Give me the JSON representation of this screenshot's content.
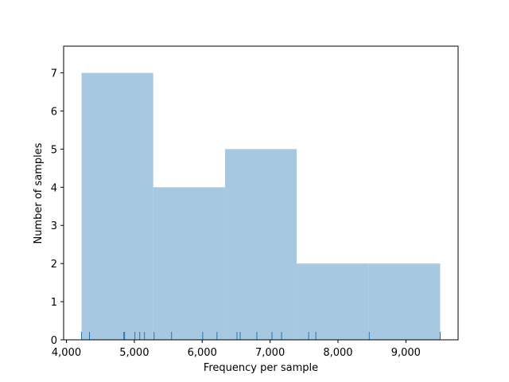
{
  "chart_data": {
    "type": "histogram",
    "xlabel": "Frequency per sample",
    "ylabel": "Number of samples",
    "bins": [
      4223,
      5279,
      6336,
      7392,
      8449,
      9505
    ],
    "counts": [
      7,
      4,
      5,
      2,
      2
    ],
    "color": "#a6c8e0",
    "rug": [
      4223,
      4340,
      4845,
      4857,
      5009,
      5080,
      5150,
      5291,
      5549,
      6007,
      6218,
      6512,
      6559,
      6805,
      7028,
      7169,
      7568,
      7674,
      8460,
      9505
    ],
    "rug_color": "#1f77b4",
    "xlim": [
      3959,
      9769
    ],
    "ylim": [
      0,
      7.7
    ],
    "xticks": [
      {
        "value": 4000,
        "label": "4,000"
      },
      {
        "value": 5000,
        "label": "5,000"
      },
      {
        "value": 6000,
        "label": "6,000"
      },
      {
        "value": 7000,
        "label": "7,000"
      },
      {
        "value": 8000,
        "label": "8,000"
      },
      {
        "value": 9000,
        "label": "9,000"
      }
    ],
    "yticks": [
      0,
      1,
      2,
      3,
      4,
      5,
      6,
      7
    ]
  }
}
